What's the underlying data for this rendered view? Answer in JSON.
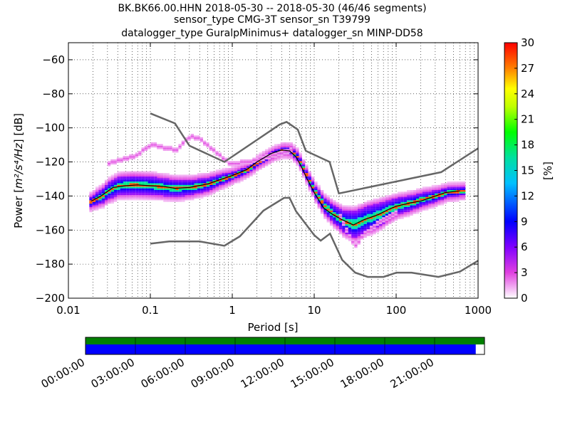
{
  "title_lines": [
    "BK.BK66.00.HHN   2018-05-30 -- 2018-05-30  (46/46 segments)",
    "sensor_type CMG-3T sensor_sn T39799",
    "datalogger_type GuralpMinimus+ datalogger_sn MINP-DD58"
  ],
  "chart_data": {
    "type": "heatmap",
    "x_scale": "log",
    "xlabel": "Period [s]",
    "ylabel": "Power [m²/s⁴/Hz] [dB]",
    "ylabel_parts": {
      "prefix": "Power [",
      "unit": "m²/s⁴/Hz",
      "suffix": "] [dB]"
    },
    "xlim": [
      0.01,
      1000
    ],
    "ylim": [
      -200,
      -50
    ],
    "x_tick_values": [
      0.01,
      0.1,
      1,
      10,
      100,
      1000
    ],
    "x_tick_labels": [
      "0.01",
      "0.1",
      "1",
      "10",
      "100",
      "1000"
    ],
    "y_tick_values": [
      -200,
      -180,
      -160,
      -140,
      -120,
      -100,
      -80,
      -60
    ],
    "y_tick_labels": [
      "−200",
      "−180",
      "−160",
      "−140",
      "−120",
      "−100",
      "−80",
      "−60"
    ],
    "grid": true,
    "colorbar": {
      "label": "[%]",
      "min": 0,
      "max": 30,
      "tick_values": [
        0,
        3,
        6,
        9,
        12,
        15,
        18,
        21,
        24,
        27,
        30
      ],
      "tick_labels": [
        "0",
        "3",
        "6",
        "9",
        "12",
        "15",
        "18",
        "21",
        "24",
        "27",
        "30"
      ]
    },
    "noise_models": [
      {
        "name": "high noise model",
        "x": [
          0.1,
          0.2,
          0.3,
          0.8,
          3.8,
          4.6,
          6.3,
          7.9,
          15.4,
          20,
          354.8,
          1000
        ],
        "y": [
          -91.5,
          -97.4,
          -110.5,
          -120,
          -98,
          -96.5,
          -101,
          -113.5,
          -120,
          -138.5,
          -126,
          -112
        ]
      },
      {
        "name": "low noise model",
        "x": [
          0.1,
          0.17,
          0.4,
          0.8,
          1.24,
          2.4,
          4.3,
          5,
          6,
          10,
          12,
          15.6,
          21.9,
          31.6,
          45,
          70,
          101,
          154,
          328,
          600,
          1000
        ],
        "y": [
          -168,
          -166.7,
          -166.7,
          -169.2,
          -163.7,
          -148.6,
          -141.1,
          -141.1,
          -149,
          -163,
          -166.2,
          -162.1,
          -177.5,
          -185,
          -187.5,
          -187.5,
          -185,
          -185,
          -187.5,
          -184.4,
          -178
        ]
      }
    ],
    "mode_curve": {
      "x": [
        0.019,
        0.025,
        0.035,
        0.05,
        0.07,
        0.1,
        0.15,
        0.2,
        0.3,
        0.5,
        0.7,
        1,
        1.5,
        2,
        3,
        4,
        5,
        6,
        7,
        8,
        10,
        13,
        17,
        22,
        30,
        40,
        60,
        80,
        100,
        150,
        200,
        300,
        400,
        600
      ],
      "y": [
        -143,
        -140,
        -135,
        -134,
        -133.5,
        -134,
        -134.5,
        -135.5,
        -135,
        -133,
        -130.5,
        -128,
        -124.5,
        -120,
        -115,
        -113,
        -113.5,
        -117,
        -123,
        -129,
        -138,
        -147,
        -151,
        -154,
        -157,
        -154,
        -151,
        -148,
        -146,
        -144,
        -143,
        -140,
        -138,
        -137
      ]
    },
    "psd_grid": {
      "x_min": 0.018,
      "x_max": 700,
      "x_step_octave": 0.125,
      "db_step": 1,
      "center": [
        [
          0.018,
          -143.5
        ],
        [
          0.025,
          -140
        ],
        [
          0.03,
          -137
        ],
        [
          0.04,
          -134
        ],
        [
          0.06,
          -133.5
        ],
        [
          0.1,
          -134
        ],
        [
          0.15,
          -135
        ],
        [
          0.2,
          -135.5
        ],
        [
          0.3,
          -135
        ],
        [
          0.5,
          -133
        ],
        [
          0.7,
          -130.5
        ],
        [
          1,
          -128
        ],
        [
          1.5,
          -124.5
        ],
        [
          2,
          -120.5
        ],
        [
          3,
          -115.5
        ],
        [
          4,
          -113
        ],
        [
          5,
          -113.5
        ],
        [
          6,
          -117
        ],
        [
          7,
          -123
        ],
        [
          8,
          -129
        ],
        [
          10,
          -138
        ],
        [
          13,
          -146
        ],
        [
          17,
          -151
        ],
        [
          22,
          -155
        ],
        [
          30,
          -157
        ],
        [
          40,
          -154
        ],
        [
          60,
          -151
        ],
        [
          80,
          -148
        ],
        [
          100,
          -146
        ],
        [
          150,
          -144
        ],
        [
          200,
          -142
        ],
        [
          300,
          -140
        ],
        [
          400,
          -138
        ],
        [
          700,
          -137
        ]
      ],
      "spread": [
        [
          0.018,
          3
        ],
        [
          0.03,
          5
        ],
        [
          0.05,
          5.5
        ],
        [
          0.1,
          5.5
        ],
        [
          0.2,
          5
        ],
        [
          0.5,
          4
        ],
        [
          1,
          2.5
        ],
        [
          2,
          2
        ],
        [
          4,
          2
        ],
        [
          7,
          2.5
        ],
        [
          10,
          3.5
        ],
        [
          20,
          6
        ],
        [
          30,
          8
        ],
        [
          50,
          7.5
        ],
        [
          100,
          5
        ],
        [
          200,
          4
        ],
        [
          400,
          3
        ],
        [
          700,
          2.5
        ]
      ],
      "upper_tail": [
        [
          0.03,
          -121
        ],
        [
          0.06,
          -117
        ],
        [
          0.1,
          -110
        ],
        [
          0.2,
          -113
        ],
        [
          0.25,
          -108
        ],
        [
          0.3,
          -105
        ],
        [
          0.4,
          -107
        ],
        [
          0.6,
          -114
        ],
        [
          0.9,
          -121
        ],
        [
          1.5,
          -120
        ],
        [
          3,
          -116
        ],
        [
          5,
          -113
        ]
      ],
      "lower_tail": [
        [
          20,
          -152
        ],
        [
          25,
          -162
        ],
        [
          30,
          -170
        ],
        [
          40,
          -162
        ],
        [
          60,
          -155
        ],
        [
          100,
          -150
        ]
      ]
    }
  },
  "time_axis": {
    "tick_labels": [
      "00:00:00",
      "03:00:00",
      "06:00:00",
      "09:00:00",
      "12:00:00",
      "15:00:00",
      "18:00:00",
      "21:00:00"
    ],
    "span_hours": [
      0,
      24
    ],
    "coverage_fraction": 0.978,
    "colors": {
      "data": "#008000",
      "coverage": "#0000ff",
      "background": "#ffffff"
    }
  }
}
